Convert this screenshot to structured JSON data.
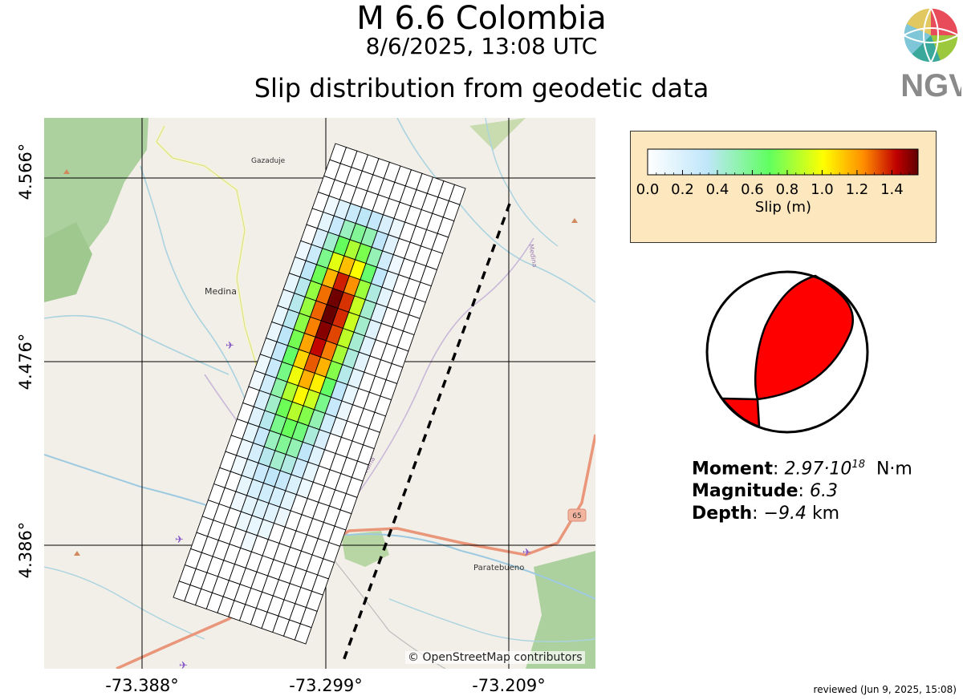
{
  "header": {
    "title": "M 6.6 Colombia",
    "datetime": "8/6/2025, 13:08 UTC",
    "subtitle": "Slip distribution from geodetic data"
  },
  "logo": {
    "text": "INGV",
    "icon": "ingv-globe-icon"
  },
  "map": {
    "attribution": "© OpenStreetMap contributors",
    "lat_labels": [
      "4.566°",
      "4.476°",
      "4.386°"
    ],
    "lon_labels": [
      "-73.388°",
      "-73.299°",
      "-73.209°"
    ],
    "places": [
      "Gazaduje",
      "Medina",
      "Paratebueno"
    ],
    "road_shield": "65",
    "river_label": "Medina",
    "road_label": "Medina",
    "fault_grid": {
      "columns": 12,
      "rows": 28
    }
  },
  "colorbar": {
    "label": "Slip (m)",
    "ticks": [
      "0.0",
      "0.2",
      "0.4",
      "0.6",
      "0.8",
      "1.0",
      "1.2",
      "1.4"
    ],
    "min": 0.0,
    "max": 1.55,
    "colors": [
      "#ffffff",
      "#bfe6fa",
      "#60ff60",
      "#ffff00",
      "#ff8c00",
      "#c00000",
      "#600000"
    ]
  },
  "beachball": {
    "fill": "#ff0000"
  },
  "source": {
    "moment_label": "Moment",
    "moment_mantissa": "2.97·10",
    "moment_exponent": "18",
    "moment_unit": "N·m",
    "magnitude_label": "Magnitude",
    "magnitude": "6.3",
    "depth_label": "Depth",
    "depth": "−9.4",
    "depth_unit": "km"
  },
  "reviewed": "reviewed (Jun 9, 2025, 15:08)"
}
